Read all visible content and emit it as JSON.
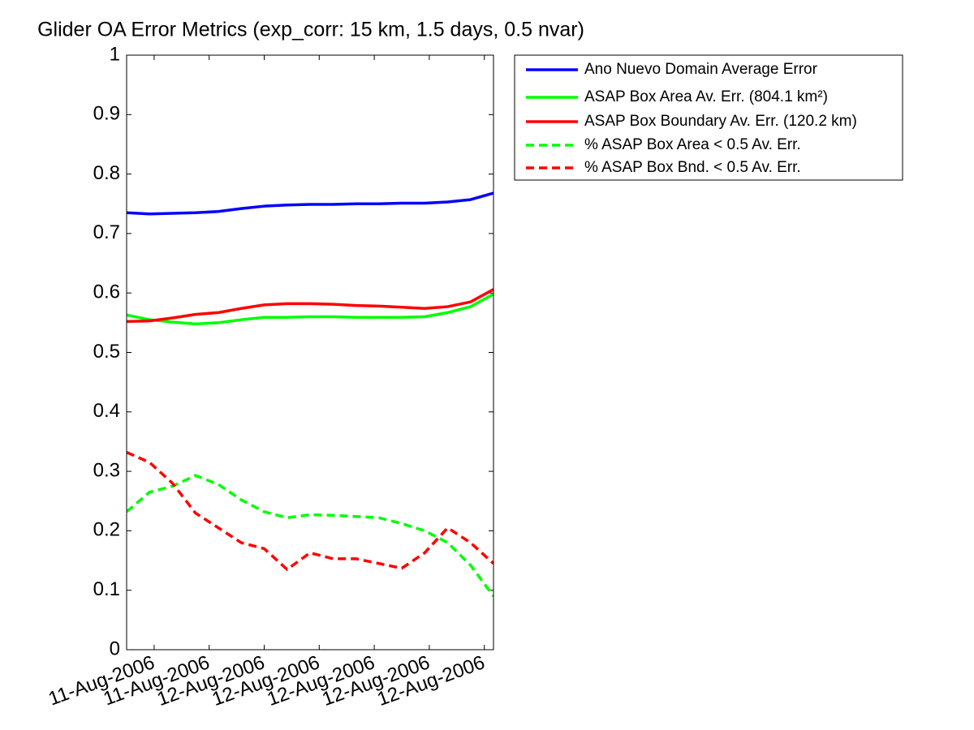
{
  "chart_data": {
    "type": "line",
    "title": "Glider OA Error Metrics (exp_corr: 15 km, 1.5 days, 0.5 nvar)",
    "x": [
      0,
      1,
      2,
      3,
      4,
      5,
      6,
      7,
      8,
      9,
      10,
      11,
      12,
      13,
      14,
      15,
      16
    ],
    "xlim": [
      0,
      16
    ],
    "xticks": [
      {
        "value": 1.2,
        "label": "11-Aug-2006"
      },
      {
        "value": 3.6,
        "label": "11-Aug-2006"
      },
      {
        "value": 6.0,
        "label": "12-Aug-2006"
      },
      {
        "value": 8.4,
        "label": "12-Aug-2006"
      },
      {
        "value": 10.8,
        "label": "12-Aug-2006"
      },
      {
        "value": 13.2,
        "label": "12-Aug-2006"
      },
      {
        "value": 15.6,
        "label": "12-Aug-2006"
      }
    ],
    "ylim": [
      0,
      1
    ],
    "yticks": [
      0,
      0.1,
      0.2,
      0.3,
      0.4,
      0.5,
      0.6,
      0.7,
      0.8,
      0.9,
      1
    ],
    "grid": false,
    "series": [
      {
        "name": "Ano Nuevo Domain Average Error",
        "color": "#0000ff",
        "linestyle": "solid",
        "values": [
          0.735,
          0.733,
          0.734,
          0.735,
          0.737,
          0.742,
          0.746,
          0.748,
          0.749,
          0.749,
          0.75,
          0.75,
          0.751,
          0.751,
          0.753,
          0.757,
          0.768
        ]
      },
      {
        "name": "ASAP Box Area Av. Err. (804.1 km²)",
        "color": "#00ff00",
        "linestyle": "solid",
        "values": [
          0.563,
          0.555,
          0.551,
          0.548,
          0.55,
          0.555,
          0.559,
          0.559,
          0.56,
          0.56,
          0.559,
          0.559,
          0.559,
          0.56,
          0.567,
          0.577,
          0.598
        ]
      },
      {
        "name": "ASAP Box Boundary Av. Err. (120.2 km)",
        "color": "#ff0000",
        "linestyle": "solid",
        "values": [
          0.552,
          0.553,
          0.558,
          0.564,
          0.567,
          0.574,
          0.58,
          0.582,
          0.582,
          0.581,
          0.579,
          0.578,
          0.576,
          0.574,
          0.577,
          0.585,
          0.606
        ]
      },
      {
        "name": "% ASAP Box Area < 0.5 Av. Err.",
        "color": "#00ff00",
        "linestyle": "dashed",
        "values": [
          0.232,
          0.265,
          0.275,
          0.293,
          0.278,
          0.252,
          0.232,
          0.222,
          0.227,
          0.226,
          0.224,
          0.222,
          0.212,
          0.2,
          0.18,
          0.142,
          0.09
        ]
      },
      {
        "name": "% ASAP Box Bnd. < 0.5 Av. Err.",
        "color": "#ff0000",
        "linestyle": "dashed",
        "values": [
          0.332,
          0.315,
          0.28,
          0.23,
          0.205,
          0.18,
          0.17,
          0.135,
          0.163,
          0.153,
          0.153,
          0.145,
          0.137,
          0.163,
          0.205,
          0.18,
          0.145
        ]
      }
    ]
  }
}
